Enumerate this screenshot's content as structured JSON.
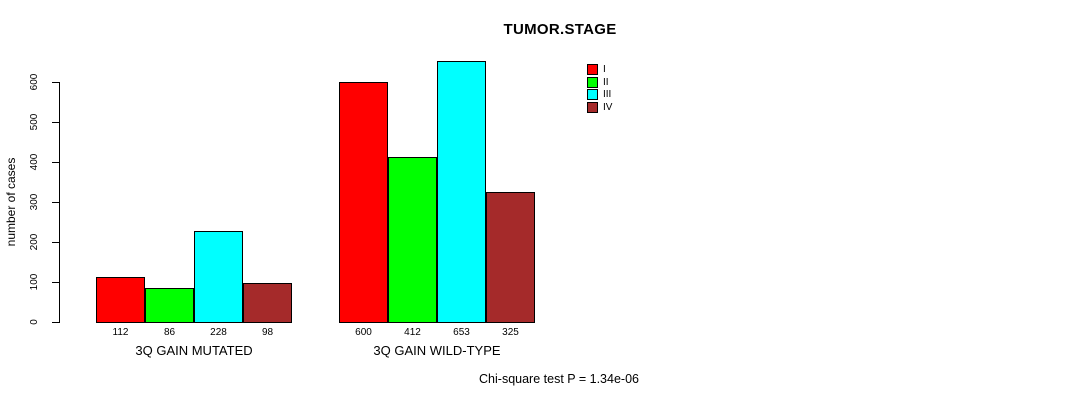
{
  "chart_data": {
    "type": "bar",
    "title": "TUMOR.STAGE",
    "xlabel": "",
    "ylabel": "number of cases",
    "ylim": [
      0,
      600
    ],
    "yticks": [
      0,
      100,
      200,
      300,
      400,
      500,
      600
    ],
    "grid": false,
    "categories": [
      "3Q GAIN MUTATED",
      "3Q GAIN WILD-TYPE"
    ],
    "series": [
      {
        "name": "I",
        "color": "#FF0000",
        "values": [
          112,
          600
        ]
      },
      {
        "name": "II",
        "color": "#00FF00",
        "values": [
          86,
          412
        ]
      },
      {
        "name": "III",
        "color": "#00FFFF",
        "values": [
          228,
          653
        ]
      },
      {
        "name": "IV",
        "color": "#A52A2A",
        "values": [
          98,
          325
        ]
      }
    ],
    "bar_value_labels": [
      [
        112,
        86,
        228,
        98
      ],
      [
        600,
        412,
        653,
        325
      ]
    ],
    "legend": {
      "position": "top-right",
      "entries": [
        {
          "label": "I",
          "color": "#FF0000"
        },
        {
          "label": "II",
          "color": "#00FF00"
        },
        {
          "label": "III",
          "color": "#00FFFF"
        },
        {
          "label": "IV",
          "color": "#A52A2A"
        }
      ]
    },
    "annotation": "Chi-square test P = 1.34e-06",
    "bar_border_color": "#000000",
    "axis_color": "#000000"
  }
}
